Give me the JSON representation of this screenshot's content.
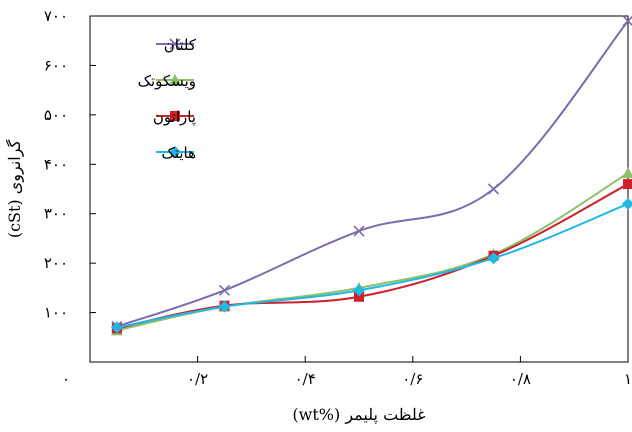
{
  "chart_data": {
    "type": "line",
    "xlabel": "غلظت پلیمر (%wt)",
    "ylabel": "گرانروی (cSt)",
    "xlim": [
      0,
      1
    ],
    "ylim": [
      0,
      700
    ],
    "x_ticks": [
      {
        "value": 0,
        "label": "۰"
      },
      {
        "value": 0.2,
        "label": "۰/۲"
      },
      {
        "value": 0.4,
        "label": "۰/۴"
      },
      {
        "value": 0.6,
        "label": "۰/۶"
      },
      {
        "value": 0.8,
        "label": "۰/۸"
      },
      {
        "value": 1,
        "label": "۱"
      }
    ],
    "y_ticks": [
      {
        "value": 100,
        "label": "۱۰۰"
      },
      {
        "value": 200,
        "label": "۲۰۰"
      },
      {
        "value": 300,
        "label": "۳۰۰"
      },
      {
        "value": 400,
        "label": "۴۰۰"
      },
      {
        "value": 500,
        "label": "۵۰۰"
      },
      {
        "value": 600,
        "label": "۶۰۰"
      },
      {
        "value": 700,
        "label": "۷۰۰"
      }
    ],
    "x": [
      0.05,
      0.25,
      0.5,
      0.75,
      1.0
    ],
    "grid": false,
    "legend_position": "top-left",
    "series": [
      {
        "name": "کلتان",
        "marker": "x",
        "color": "#7E6AAE",
        "values": [
          72,
          145,
          265,
          350,
          690
        ]
      },
      {
        "name": "ویسکوتک",
        "marker": "triangle",
        "color": "#8EC06C",
        "values": [
          64,
          112,
          150,
          218,
          382
        ]
      },
      {
        "name": "پاراتون",
        "marker": "square",
        "color": "#D0202A",
        "values": [
          68,
          114,
          132,
          215,
          360
        ]
      },
      {
        "name": "هایتک",
        "marker": "diamond",
        "color": "#1EB8E6",
        "values": [
          70,
          112,
          145,
          210,
          320
        ]
      }
    ]
  }
}
